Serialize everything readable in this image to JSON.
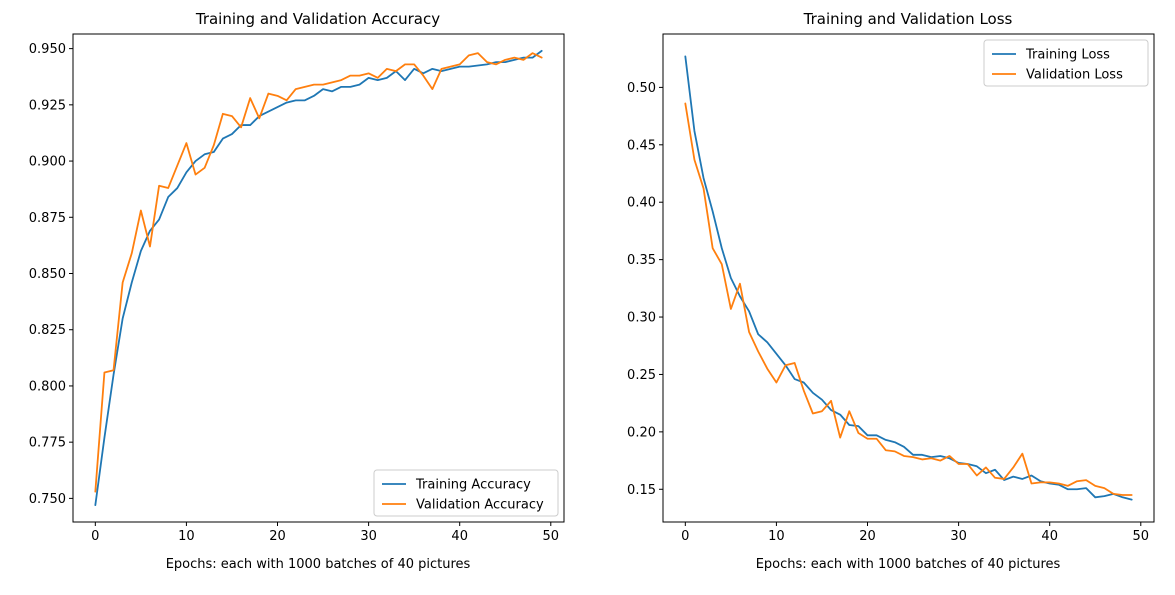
{
  "chart_data": [
    {
      "type": "line",
      "title": "Training and Validation Accuracy",
      "xlabel": "Epochs: each with 1000 batches of 40 pictures",
      "ylabel": "",
      "xlim": [
        -2.45,
        51.45
      ],
      "ylim": [
        0.7395,
        0.9565
      ],
      "xticks": [
        0,
        10,
        20,
        30,
        40,
        50
      ],
      "yticks": [
        0.75,
        0.775,
        0.8,
        0.825,
        0.85,
        0.875,
        0.9,
        0.925,
        0.95
      ],
      "ytick_labels": [
        "0.750",
        "0.775",
        "0.800",
        "0.825",
        "0.850",
        "0.875",
        "0.900",
        "0.925",
        "0.950"
      ],
      "grid": false,
      "legend_position": "bottom-right",
      "x": [
        0,
        1,
        2,
        3,
        4,
        5,
        6,
        7,
        8,
        9,
        10,
        11,
        12,
        13,
        14,
        15,
        16,
        17,
        18,
        19,
        20,
        21,
        22,
        23,
        24,
        25,
        26,
        27,
        28,
        29,
        30,
        31,
        32,
        33,
        34,
        35,
        36,
        37,
        38,
        39,
        40,
        41,
        42,
        43,
        44,
        45,
        46,
        47,
        48,
        49
      ],
      "series": [
        {
          "name": "Training Accuracy",
          "color": "#1f77b4",
          "values": [
            0.747,
            0.777,
            0.805,
            0.83,
            0.846,
            0.86,
            0.869,
            0.874,
            0.884,
            0.888,
            0.895,
            0.9,
            0.903,
            0.904,
            0.91,
            0.912,
            0.916,
            0.916,
            0.92,
            0.922,
            0.924,
            0.926,
            0.927,
            0.927,
            0.929,
            0.932,
            0.931,
            0.933,
            0.933,
            0.934,
            0.937,
            0.936,
            0.937,
            0.94,
            0.936,
            0.941,
            0.939,
            0.941,
            0.94,
            0.941,
            0.942,
            0.942,
            0.9425,
            0.943,
            0.944,
            0.944,
            0.945,
            0.946,
            0.946,
            0.949
          ]
        },
        {
          "name": "Validation Accuracy",
          "color": "#ff7f0e",
          "values": [
            0.753,
            0.806,
            0.807,
            0.846,
            0.859,
            0.878,
            0.862,
            0.889,
            0.888,
            0.898,
            0.908,
            0.894,
            0.897,
            0.907,
            0.921,
            0.92,
            0.915,
            0.928,
            0.919,
            0.93,
            0.929,
            0.927,
            0.932,
            0.933,
            0.934,
            0.934,
            0.935,
            0.936,
            0.938,
            0.938,
            0.939,
            0.937,
            0.941,
            0.94,
            0.943,
            0.943,
            0.938,
            0.932,
            0.941,
            0.942,
            0.943,
            0.947,
            0.948,
            0.944,
            0.943,
            0.945,
            0.946,
            0.945,
            0.948,
            0.946
          ]
        }
      ]
    },
    {
      "type": "line",
      "title": "Training and Validation Loss",
      "xlabel": "Epochs: each with 1000 batches of 40 pictures",
      "ylabel": "",
      "xlim": [
        -2.45,
        51.45
      ],
      "ylim": [
        0.1215,
        0.5465
      ],
      "xticks": [
        0,
        10,
        20,
        30,
        40,
        50
      ],
      "yticks": [
        0.15,
        0.2,
        0.25,
        0.3,
        0.35,
        0.4,
        0.45,
        0.5
      ],
      "ytick_labels": [
        "0.15",
        "0.20",
        "0.25",
        "0.30",
        "0.35",
        "0.40",
        "0.45",
        "0.50"
      ],
      "grid": false,
      "legend_position": "top-right",
      "x": [
        0,
        1,
        2,
        3,
        4,
        5,
        6,
        7,
        8,
        9,
        10,
        11,
        12,
        13,
        14,
        15,
        16,
        17,
        18,
        19,
        20,
        21,
        22,
        23,
        24,
        25,
        26,
        27,
        28,
        29,
        30,
        31,
        32,
        33,
        34,
        35,
        36,
        37,
        38,
        39,
        40,
        41,
        42,
        43,
        44,
        45,
        46,
        47,
        48,
        49
      ],
      "series": [
        {
          "name": "Training Loss",
          "color": "#1f77b4",
          "values": [
            0.527,
            0.462,
            0.421,
            0.392,
            0.36,
            0.334,
            0.318,
            0.305,
            0.285,
            0.278,
            0.268,
            0.258,
            0.246,
            0.243,
            0.234,
            0.228,
            0.219,
            0.215,
            0.206,
            0.205,
            0.197,
            0.197,
            0.193,
            0.191,
            0.187,
            0.18,
            0.18,
            0.178,
            0.179,
            0.177,
            0.173,
            0.172,
            0.17,
            0.164,
            0.167,
            0.158,
            0.161,
            0.159,
            0.162,
            0.157,
            0.155,
            0.154,
            0.15,
            0.15,
            0.151,
            0.143,
            0.144,
            0.146,
            0.143,
            0.141
          ]
        },
        {
          "name": "Validation Loss",
          "color": "#ff7f0e",
          "values": [
            0.486,
            0.437,
            0.412,
            0.36,
            0.346,
            0.307,
            0.329,
            0.287,
            0.27,
            0.255,
            0.243,
            0.258,
            0.26,
            0.236,
            0.216,
            0.218,
            0.227,
            0.195,
            0.218,
            0.199,
            0.194,
            0.194,
            0.184,
            0.183,
            0.179,
            0.178,
            0.176,
            0.177,
            0.175,
            0.179,
            0.172,
            0.172,
            0.162,
            0.169,
            0.16,
            0.159,
            0.169,
            0.181,
            0.155,
            0.156,
            0.156,
            0.155,
            0.153,
            0.157,
            0.158,
            0.153,
            0.151,
            0.146,
            0.145,
            0.145
          ]
        }
      ]
    }
  ]
}
